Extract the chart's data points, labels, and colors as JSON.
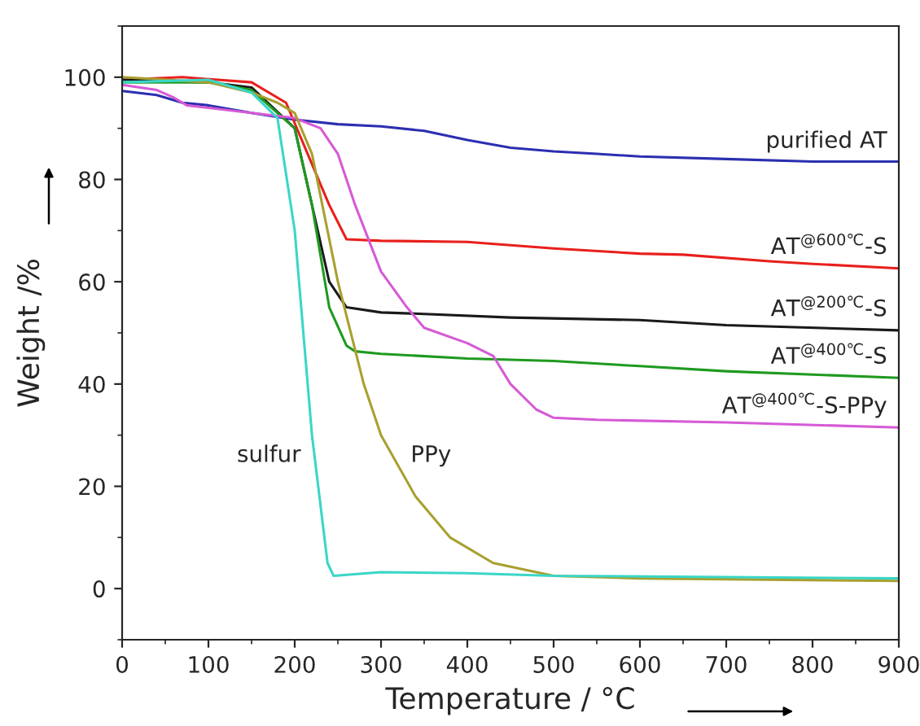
{
  "chart_data": {
    "type": "line",
    "xlabel": "Temperature / °C",
    "ylabel": "Weight /%",
    "xlim": [
      0,
      900
    ],
    "ylim": [
      -10,
      110
    ],
    "xticks": [
      0,
      100,
      200,
      300,
      400,
      500,
      600,
      700,
      800,
      900
    ],
    "yticks": [
      0,
      20,
      40,
      60,
      80,
      100
    ],
    "grid": false,
    "legend": false,
    "series": [
      {
        "name": "purified AT",
        "color": "#2b2fb0",
        "x": [
          0,
          40,
          70,
          100,
          150,
          200,
          250,
          300,
          350,
          400,
          450,
          500,
          550,
          600,
          700,
          800,
          900
        ],
        "values": [
          97.3,
          96.5,
          95,
          94.5,
          93,
          91.7,
          90.8,
          90.4,
          89.5,
          87.7,
          86.2,
          85.5,
          85,
          84.5,
          84,
          83.5,
          83.5
        ]
      },
      {
        "name": "AT$^{@600℃}$-S",
        "color": "#e8201c",
        "x": [
          0,
          70,
          150,
          190,
          215,
          240,
          260,
          300,
          400,
          500,
          600,
          650,
          750,
          800,
          900
        ],
        "values": [
          99.5,
          100,
          99,
          95,
          85,
          75,
          68.3,
          68,
          67.8,
          66.5,
          65.5,
          65.3,
          64,
          63.5,
          62.6
        ]
      },
      {
        "name": "AT$^{@200℃}$-S",
        "color": "#1a1a1a",
        "x": [
          0,
          100,
          150,
          200,
          220,
          240,
          260,
          300,
          350,
          450,
          600,
          700,
          900
        ],
        "values": [
          99.5,
          99,
          98,
          90,
          75,
          60,
          55,
          54,
          53.7,
          53,
          52.5,
          51.5,
          50.5
        ]
      },
      {
        "name": "AT$^{@400℃}$-S",
        "color": "#1f9a1f",
        "x": [
          0,
          100,
          150,
          200,
          220,
          240,
          260,
          270,
          300,
          400,
          500,
          600,
          700,
          900
        ],
        "values": [
          99,
          99,
          97.5,
          90,
          75,
          55,
          47.5,
          46.4,
          45.9,
          45,
          44.5,
          43.5,
          42.5,
          41.2
        ]
      },
      {
        "name": "AT$^{@400℃}$-S-PPy",
        "color": "#d65ad6",
        "x": [
          0,
          40,
          60,
          75,
          150,
          200,
          230,
          250,
          270,
          300,
          330,
          350,
          400,
          430,
          450,
          480,
          500,
          550,
          700,
          900
        ],
        "values": [
          98.5,
          97.5,
          96,
          94.5,
          93,
          92,
          90,
          85,
          75,
          62,
          55,
          51,
          48,
          45.5,
          40,
          35,
          33.4,
          33,
          32.5,
          31.5
        ]
      },
      {
        "name": "PPy",
        "color": "#a8a030",
        "x": [
          0,
          100,
          150,
          180,
          200,
          220,
          250,
          280,
          300,
          340,
          380,
          430,
          500,
          600,
          900
        ],
        "values": [
          100,
          99,
          97,
          95,
          93,
          85,
          60,
          40,
          30,
          18,
          10,
          5,
          2.5,
          2,
          1.5
        ]
      },
      {
        "name": "sulfur",
        "color": "#3ad6c8",
        "x": [
          0,
          100,
          150,
          180,
          200,
          220,
          238,
          245,
          300,
          400,
          500,
          900
        ],
        "values": [
          99,
          99.5,
          97,
          92,
          70,
          30,
          5,
          2.5,
          3.2,
          3,
          2.5,
          2
        ]
      }
    ]
  }
}
